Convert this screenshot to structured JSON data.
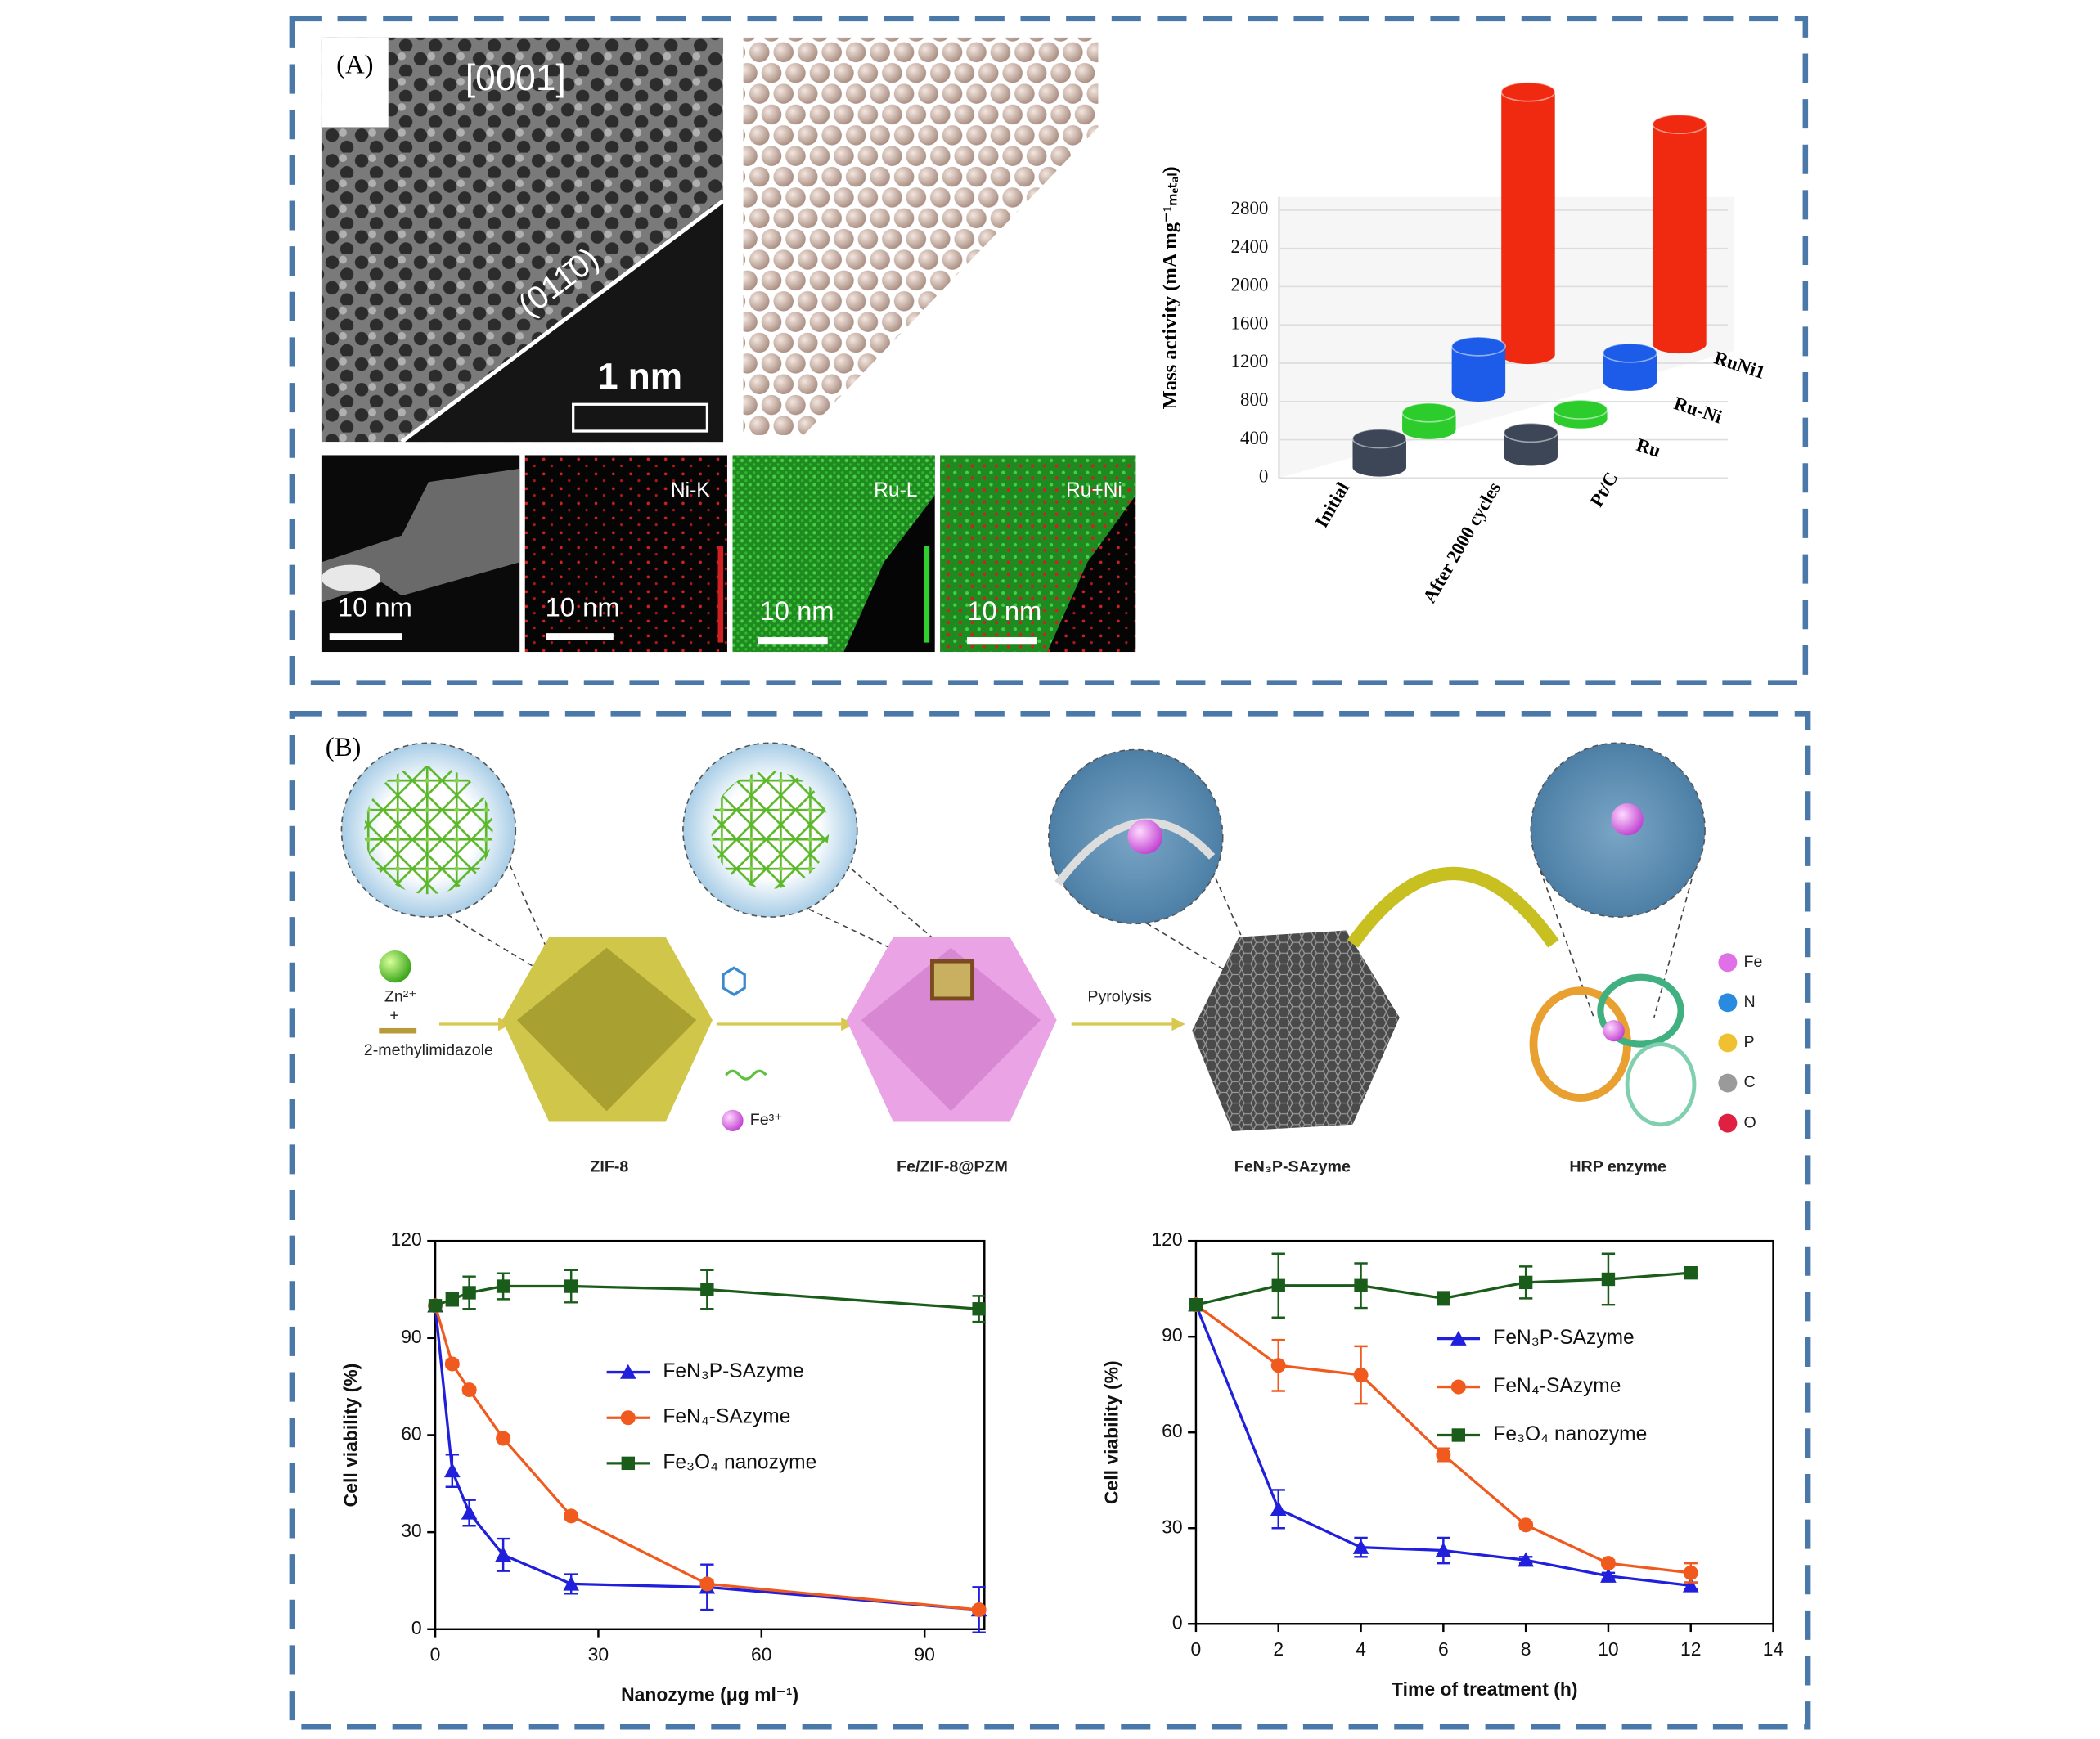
{
  "panel_labels": [
    "(A)",
    "(B)"
  ],
  "micrographs": {
    "zone_axis": "[0001]",
    "plane": "(011̄0)",
    "scale_bar": "1 nm",
    "eds_maps": [
      {
        "scale_bar": "10 nm"
      },
      {
        "label": "Ni-K",
        "scale_bar": "10 nm"
      },
      {
        "label": "Ru-L",
        "scale_bar": "10 nm"
      },
      {
        "label": "Ru+Ni",
        "scale_bar": "10 nm"
      }
    ]
  },
  "schematic": {
    "precursors": [
      "Zn²⁺",
      "+",
      "2-methylimidazole"
    ],
    "ion": "Fe³⁺",
    "step": "Pyrolysis",
    "stages": [
      "ZIF-8",
      "Fe/ZIF-8@PZM",
      "FeN₃P-SAzyme",
      "HRP enzyme"
    ],
    "elements": [
      {
        "name": "Fe",
        "color": "#e070e8"
      },
      {
        "name": "N",
        "color": "#2a8ae0"
      },
      {
        "name": "P",
        "color": "#f0c030"
      },
      {
        "name": "C",
        "color": "#9a9a9a"
      },
      {
        "name": "O",
        "color": "#e02040"
      }
    ]
  },
  "chart_data": [
    {
      "type": "bar",
      "ylabel": "Mass activity (mA mg⁻¹ₘₑₜₐₗ)",
      "categories": [
        "Initial",
        "After 2000 cycles"
      ],
      "series": [
        {
          "name": "Pt/C",
          "color": "#3c4656",
          "values": [
            300,
            250
          ]
        },
        {
          "name": "Ru",
          "color": "#2ccc2c",
          "values": [
            180,
            100
          ]
        },
        {
          "name": "Ru-Ni",
          "color": "#1c5ce8",
          "values": [
            480,
            300
          ]
        },
        {
          "name": "RuNi1",
          "color": "#f02a10",
          "values": [
            2750,
            2300
          ]
        }
      ],
      "ylim": [
        0,
        2800
      ],
      "yticks": [
        0,
        400,
        800,
        1200,
        1600,
        2000,
        2400,
        2800
      ],
      "grid": true
    },
    {
      "type": "line",
      "xlabel": "Nanozyme (μg ml⁻¹)",
      "ylabel": "Cell viability (%)",
      "x": [
        0,
        3.125,
        6.25,
        12.5,
        25,
        50,
        100
      ],
      "xlim": [
        0,
        101
      ],
      "xticks": [
        0,
        30,
        60,
        90
      ],
      "ylim": [
        0,
        120
      ],
      "yticks": [
        0,
        30,
        60,
        90,
        120
      ],
      "series": [
        {
          "name": "FeN₃P-SAzyme",
          "color": "#1f1fdc",
          "marker": "triangle",
          "values": [
            100,
            49,
            36,
            23,
            14,
            13,
            6
          ],
          "errors": [
            0,
            5,
            4,
            5,
            3,
            7,
            7
          ]
        },
        {
          "name": "FeN₄-SAzyme",
          "color": "#f05a1e",
          "marker": "circle",
          "values": [
            100,
            82,
            74,
            59,
            35,
            14,
            6
          ],
          "errors": [
            0,
            1,
            1,
            1,
            1,
            1,
            1
          ]
        },
        {
          "name": "Fe₃O₄ nanozyme",
          "color": "#1a5c1a",
          "marker": "square",
          "values": [
            100,
            102,
            104,
            106,
            106,
            105,
            99
          ],
          "errors": [
            0,
            2,
            5,
            4,
            5,
            6,
            4
          ]
        }
      ]
    },
    {
      "type": "line",
      "xlabel": "Time of treatment (h)",
      "ylabel": "Cell viability (%)",
      "x": [
        0,
        2,
        4,
        6,
        8,
        10,
        12
      ],
      "xlim": [
        0,
        14
      ],
      "xticks": [
        0,
        2,
        4,
        6,
        8,
        10,
        12,
        14
      ],
      "ylim": [
        0,
        120
      ],
      "yticks": [
        0,
        30,
        60,
        90,
        120
      ],
      "series": [
        {
          "name": "FeN₃P-SAzyme",
          "color": "#1f1fdc",
          "marker": "triangle",
          "values": [
            100,
            36,
            24,
            23,
            20,
            15,
            12
          ],
          "errors": [
            0,
            6,
            3,
            4,
            1,
            1,
            1
          ]
        },
        {
          "name": "FeN₄-SAzyme",
          "color": "#f05a1e",
          "marker": "circle",
          "values": [
            100,
            81,
            78,
            53,
            31,
            19,
            16
          ],
          "errors": [
            0,
            8,
            9,
            2,
            1,
            1,
            3
          ]
        },
        {
          "name": "Fe₃O₄ nanozyme",
          "color": "#1a5c1a",
          "marker": "square",
          "values": [
            100,
            106,
            106,
            102,
            107,
            108,
            110
          ],
          "errors": [
            0,
            10,
            7,
            2,
            5,
            8,
            1
          ]
        }
      ]
    }
  ]
}
